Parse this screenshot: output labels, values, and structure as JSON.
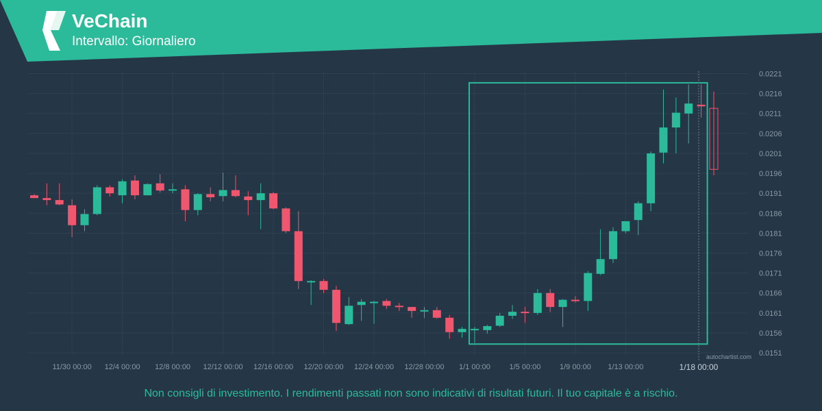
{
  "header": {
    "title": "VeChain",
    "subtitle": "Intervallo: Giornaliero"
  },
  "disclaimer": "Non consigli di investimento. I rendimenti passati non sono indicativi di risultati futuri. Il tuo capitale è a rischio.",
  "watermark": "autochartist.com",
  "colors": {
    "background": "#253746",
    "banner": "#2bbb9b",
    "up": "#2bbb9b",
    "down": "#f0566e",
    "grid": "#2f4150",
    "axis_text": "#8a99a6",
    "pattern_box": "#2bbb9b"
  },
  "chart_data": {
    "type": "candlestick",
    "x_tick_labels": [
      "11/30 00:00",
      "12/4 00:00",
      "12/8 00:00",
      "12/12 00:00",
      "12/16 00:00",
      "12/20 00:00",
      "12/24 00:00",
      "12/28 00:00",
      "1/1 00:00",
      "1/5 00:00",
      "1/9 00:00",
      "1/13 00:00"
    ],
    "current_time_label": "1/18 00:00",
    "y_tick_labels": [
      "0.0221",
      "0.0216",
      "0.0211",
      "0.0206",
      "0.0201",
      "0.0196",
      "0.0191",
      "0.0186",
      "0.0181",
      "0.0176",
      "0.0171",
      "0.0166",
      "0.0161",
      "0.0156",
      "0.0151"
    ],
    "ylim": [
      0.01505,
      0.02216
    ],
    "grid": true,
    "candles": [
      {
        "o": 0.01905,
        "h": 0.01908,
        "l": 0.01898,
        "c": 0.01898
      },
      {
        "o": 0.01898,
        "h": 0.01935,
        "l": 0.0188,
        "c": 0.01893
      },
      {
        "o": 0.01893,
        "h": 0.01935,
        "l": 0.0188,
        "c": 0.01882
      },
      {
        "o": 0.0188,
        "h": 0.01895,
        "l": 0.018,
        "c": 0.0183
      },
      {
        "o": 0.0183,
        "h": 0.0187,
        "l": 0.01815,
        "c": 0.01858
      },
      {
        "o": 0.01858,
        "h": 0.0193,
        "l": 0.01855,
        "c": 0.01925
      },
      {
        "o": 0.01925,
        "h": 0.0193,
        "l": 0.01902,
        "c": 0.0191
      },
      {
        "o": 0.01905,
        "h": 0.01945,
        "l": 0.01885,
        "c": 0.0194
      },
      {
        "o": 0.01942,
        "h": 0.01955,
        "l": 0.01895,
        "c": 0.01905
      },
      {
        "o": 0.01905,
        "h": 0.01935,
        "l": 0.01905,
        "c": 0.01933
      },
      {
        "o": 0.01935,
        "h": 0.01958,
        "l": 0.01912,
        "c": 0.01917
      },
      {
        "o": 0.0192,
        "h": 0.01935,
        "l": 0.0191,
        "c": 0.0192
      },
      {
        "o": 0.0192,
        "h": 0.0193,
        "l": 0.0184,
        "c": 0.01868
      },
      {
        "o": 0.01868,
        "h": 0.0191,
        "l": 0.01855,
        "c": 0.01908
      },
      {
        "o": 0.01908,
        "h": 0.01925,
        "l": 0.0189,
        "c": 0.019
      },
      {
        "o": 0.01903,
        "h": 0.01962,
        "l": 0.0189,
        "c": 0.01918
      },
      {
        "o": 0.01918,
        "h": 0.01955,
        "l": 0.019,
        "c": 0.01903
      },
      {
        "o": 0.01902,
        "h": 0.01915,
        "l": 0.01855,
        "c": 0.01893
      },
      {
        "o": 0.01893,
        "h": 0.01935,
        "l": 0.0182,
        "c": 0.0191
      },
      {
        "o": 0.0191,
        "h": 0.01913,
        "l": 0.0187,
        "c": 0.01872
      },
      {
        "o": 0.01872,
        "h": 0.01875,
        "l": 0.0181,
        "c": 0.01815
      },
      {
        "o": 0.01815,
        "h": 0.01865,
        "l": 0.0167,
        "c": 0.0169
      },
      {
        "o": 0.0169,
        "h": 0.01692,
        "l": 0.0163,
        "c": 0.0169
      },
      {
        "o": 0.0169,
        "h": 0.01695,
        "l": 0.0166,
        "c": 0.01668
      },
      {
        "o": 0.01668,
        "h": 0.01678,
        "l": 0.01565,
        "c": 0.01585
      },
      {
        "o": 0.01582,
        "h": 0.0165,
        "l": 0.0158,
        "c": 0.01628
      },
      {
        "o": 0.0163,
        "h": 0.01645,
        "l": 0.0159,
        "c": 0.01638
      },
      {
        "o": 0.01638,
        "h": 0.0164,
        "l": 0.01583,
        "c": 0.01638
      },
      {
        "o": 0.0164,
        "h": 0.01645,
        "l": 0.0162,
        "c": 0.01628
      },
      {
        "o": 0.01628,
        "h": 0.01635,
        "l": 0.01615,
        "c": 0.01625
      },
      {
        "o": 0.01625,
        "h": 0.01625,
        "l": 0.01598,
        "c": 0.01615
      },
      {
        "o": 0.01617,
        "h": 0.01625,
        "l": 0.01597,
        "c": 0.01617
      },
      {
        "o": 0.01617,
        "h": 0.01625,
        "l": 0.01595,
        "c": 0.01598
      },
      {
        "o": 0.01598,
        "h": 0.01605,
        "l": 0.01545,
        "c": 0.01562
      },
      {
        "o": 0.01562,
        "h": 0.01575,
        "l": 0.01548,
        "c": 0.0157
      },
      {
        "o": 0.0157,
        "h": 0.01575,
        "l": 0.01535,
        "c": 0.0157
      },
      {
        "o": 0.01567,
        "h": 0.0158,
        "l": 0.01558,
        "c": 0.01577
      },
      {
        "o": 0.01578,
        "h": 0.0161,
        "l": 0.01575,
        "c": 0.01603
      },
      {
        "o": 0.01603,
        "h": 0.0163,
        "l": 0.01595,
        "c": 0.01613
      },
      {
        "o": 0.01613,
        "h": 0.01625,
        "l": 0.01585,
        "c": 0.0161
      },
      {
        "o": 0.0161,
        "h": 0.0167,
        "l": 0.01605,
        "c": 0.0166
      },
      {
        "o": 0.0166,
        "h": 0.0167,
        "l": 0.01612,
        "c": 0.01625
      },
      {
        "o": 0.01625,
        "h": 0.01645,
        "l": 0.01575,
        "c": 0.01643
      },
      {
        "o": 0.01643,
        "h": 0.01652,
        "l": 0.01636,
        "c": 0.0164
      },
      {
        "o": 0.0164,
        "h": 0.01715,
        "l": 0.01615,
        "c": 0.0171
      },
      {
        "o": 0.01708,
        "h": 0.0182,
        "l": 0.01705,
        "c": 0.01745
      },
      {
        "o": 0.01745,
        "h": 0.01825,
        "l": 0.01735,
        "c": 0.01815
      },
      {
        "o": 0.01815,
        "h": 0.0184,
        "l": 0.0181,
        "c": 0.0184
      },
      {
        "o": 0.01843,
        "h": 0.0189,
        "l": 0.01805,
        "c": 0.01885
      },
      {
        "o": 0.01885,
        "h": 0.02015,
        "l": 0.01865,
        "c": 0.0201
      },
      {
        "o": 0.02012,
        "h": 0.0217,
        "l": 0.01985,
        "c": 0.02075
      },
      {
        "o": 0.02075,
        "h": 0.0215,
        "l": 0.0201,
        "c": 0.02112
      },
      {
        "o": 0.0211,
        "h": 0.02183,
        "l": 0.02035,
        "c": 0.02135
      },
      {
        "o": 0.02132,
        "h": 0.02183,
        "l": 0.021,
        "c": 0.02128
      },
      {
        "o": 0.02123,
        "h": 0.02165,
        "l": 0.01955,
        "c": 0.0197
      }
    ],
    "pattern_box": {
      "start_index": 35,
      "end_index": 53,
      "high": 0.02187,
      "low": 0.01532
    }
  }
}
